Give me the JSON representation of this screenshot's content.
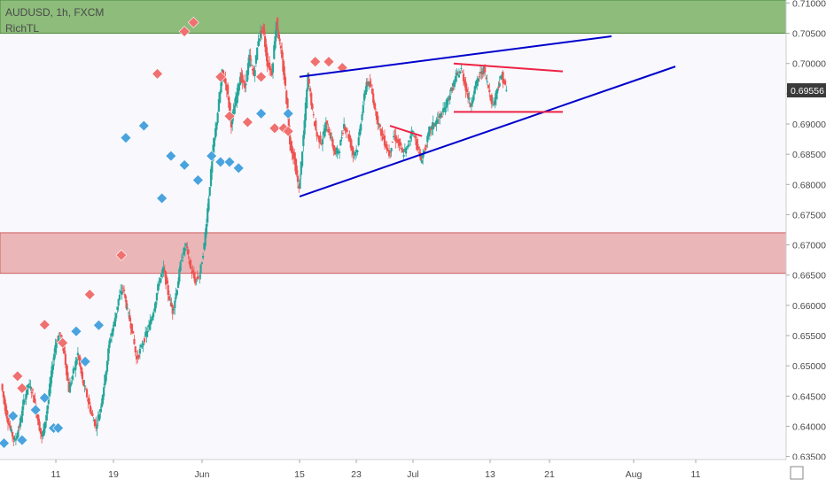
{
  "legend": {
    "symbol_line": "AUDUSD, 1h, FXCM",
    "indicator": "RichTL"
  },
  "colors": {
    "background": "#f8f8fd",
    "candle_up": "#26a69a",
    "candle_down": "#ef5350",
    "resistance_zone": "#e08080",
    "support_zone": "#6aa84f",
    "trendline_blue": "#0000cc",
    "trendline_red": "#ee2244",
    "marker_high": "#f07070",
    "marker_low": "#4aa3df",
    "price_label_bg": "#3a3a3a"
  },
  "chart_data": {
    "type": "candlestick",
    "symbol": "AUDUSD",
    "timeframe": "1h",
    "feed": "FXCM",
    "indicator": "RichTL",
    "last_price": "0.69556",
    "y_axis": {
      "range": [
        0.6345,
        0.7105
      ],
      "ticks": [
        "0.71000",
        "0.70500",
        "0.70000",
        "0.69500",
        "0.69000",
        "0.68500",
        "0.68000",
        "0.67500",
        "0.67000",
        "0.66500",
        "0.66000",
        "0.65500",
        "0.65000",
        "0.64500",
        "0.64000",
        "0.63500"
      ]
    },
    "x_axis": {
      "ticks": [
        "11",
        "19",
        "Jun",
        "15",
        "23",
        "Jul",
        "13",
        "21",
        "Aug",
        "11"
      ]
    },
    "zones": [
      {
        "name": "green zone",
        "from": 0.705,
        "to": 0.7105
      },
      {
        "name": "red zone",
        "from": 0.6653,
        "to": 0.672
      }
    ],
    "trendlines": [
      {
        "color": "blue",
        "from": [
          "Jun 15",
          0.6978
        ],
        "to": [
          "Aug",
          0.7045
        ]
      },
      {
        "color": "blue",
        "from": [
          "Jun 15",
          0.678
        ],
        "to": [
          "Aug 11",
          0.6995
        ]
      },
      {
        "color": "red",
        "from": [
          "Jul 7",
          0.7
        ],
        "to": [
          "Jul 21",
          0.6987
        ]
      },
      {
        "color": "red",
        "from": [
          "Jul 7",
          0.692
        ],
        "to": [
          "Jul 21",
          0.692
        ]
      },
      {
        "color": "red",
        "from": [
          "Jun 24",
          0.6897
        ],
        "to": [
          "Jul 2",
          0.688
        ]
      }
    ],
    "price_path": [
      [
        0.647,
        0.6425,
        0.6395,
        0.6375,
        0.64,
        0.644,
        0.647,
        0.6455,
        0.6415,
        0.638,
        0.642,
        0.648,
        0.6535,
        0.6555,
        0.652,
        0.646,
        0.649,
        0.652,
        0.6475,
        0.645,
        0.642,
        0.64,
        0.643,
        0.648,
        0.654,
        0.657,
        0.661,
        0.663,
        0.659,
        0.656,
        0.651,
        0.653,
        0.655,
        0.657,
        0.66,
        0.664,
        0.666,
        0.662,
        0.659,
        0.663,
        0.668,
        0.67,
        0.666,
        0.664,
        0.665,
        0.67,
        0.678,
        0.686,
        0.692,
        0.6985,
        0.696,
        0.69,
        0.694,
        0.698,
        0.696,
        0.701,
        0.698,
        0.704,
        0.706,
        0.7,
        0.6985,
        0.707,
        0.702,
        0.696,
        0.687,
        0.684,
        0.679,
        0.688,
        0.698,
        0.692,
        0.688,
        0.687,
        0.69,
        0.688,
        0.685,
        0.686,
        0.69,
        0.688,
        0.685,
        0.686,
        0.692,
        0.697,
        0.696,
        0.692,
        0.689,
        0.687,
        0.685,
        0.688,
        0.687,
        0.685,
        0.686,
        0.689,
        0.687,
        0.684,
        0.686,
        0.689,
        0.69,
        0.691,
        0.692,
        0.694,
        0.696,
        0.698,
        0.699,
        0.696,
        0.693,
        0.696,
        0.698,
        0.699,
        0.696,
        0.693,
        0.696,
        0.698,
        0.6955
      ]
    ],
    "pivot_markers": {
      "highs": [
        [
          0.648,
          3
        ],
        [
          0.646,
          4
        ],
        [
          0.6565,
          9
        ],
        [
          0.6535,
          13
        ],
        [
          0.6615,
          19
        ],
        [
          0.668,
          26
        ],
        [
          0.698,
          34
        ],
        [
          0.705,
          40
        ],
        [
          0.7065,
          42
        ],
        [
          0.6975,
          48
        ],
        [
          0.691,
          50
        ],
        [
          0.69,
          54
        ],
        [
          0.6975,
          57
        ],
        [
          0.689,
          60
        ],
        [
          0.689,
          62
        ],
        [
          0.6885,
          63
        ],
        [
          0.7,
          69
        ],
        [
          0.7,
          72
        ],
        [
          0.699,
          75
        ]
      ],
      "lows": [
        [
          0.6375,
          0
        ],
        [
          0.642,
          2
        ],
        [
          0.638,
          4
        ],
        [
          0.643,
          7
        ],
        [
          0.645,
          9
        ],
        [
          0.64,
          11
        ],
        [
          0.64,
          12
        ],
        [
          0.656,
          16
        ],
        [
          0.651,
          18
        ],
        [
          0.657,
          21
        ],
        [
          0.688,
          27
        ],
        [
          0.69,
          31
        ],
        [
          0.678,
          35
        ],
        [
          0.685,
          37
        ],
        [
          0.6835,
          40
        ],
        [
          0.681,
          43
        ],
        [
          0.685,
          46
        ],
        [
          0.684,
          48
        ],
        [
          0.684,
          50
        ],
        [
          0.683,
          52
        ],
        [
          0.692,
          57
        ],
        [
          0.692,
          63
        ]
      ]
    }
  }
}
